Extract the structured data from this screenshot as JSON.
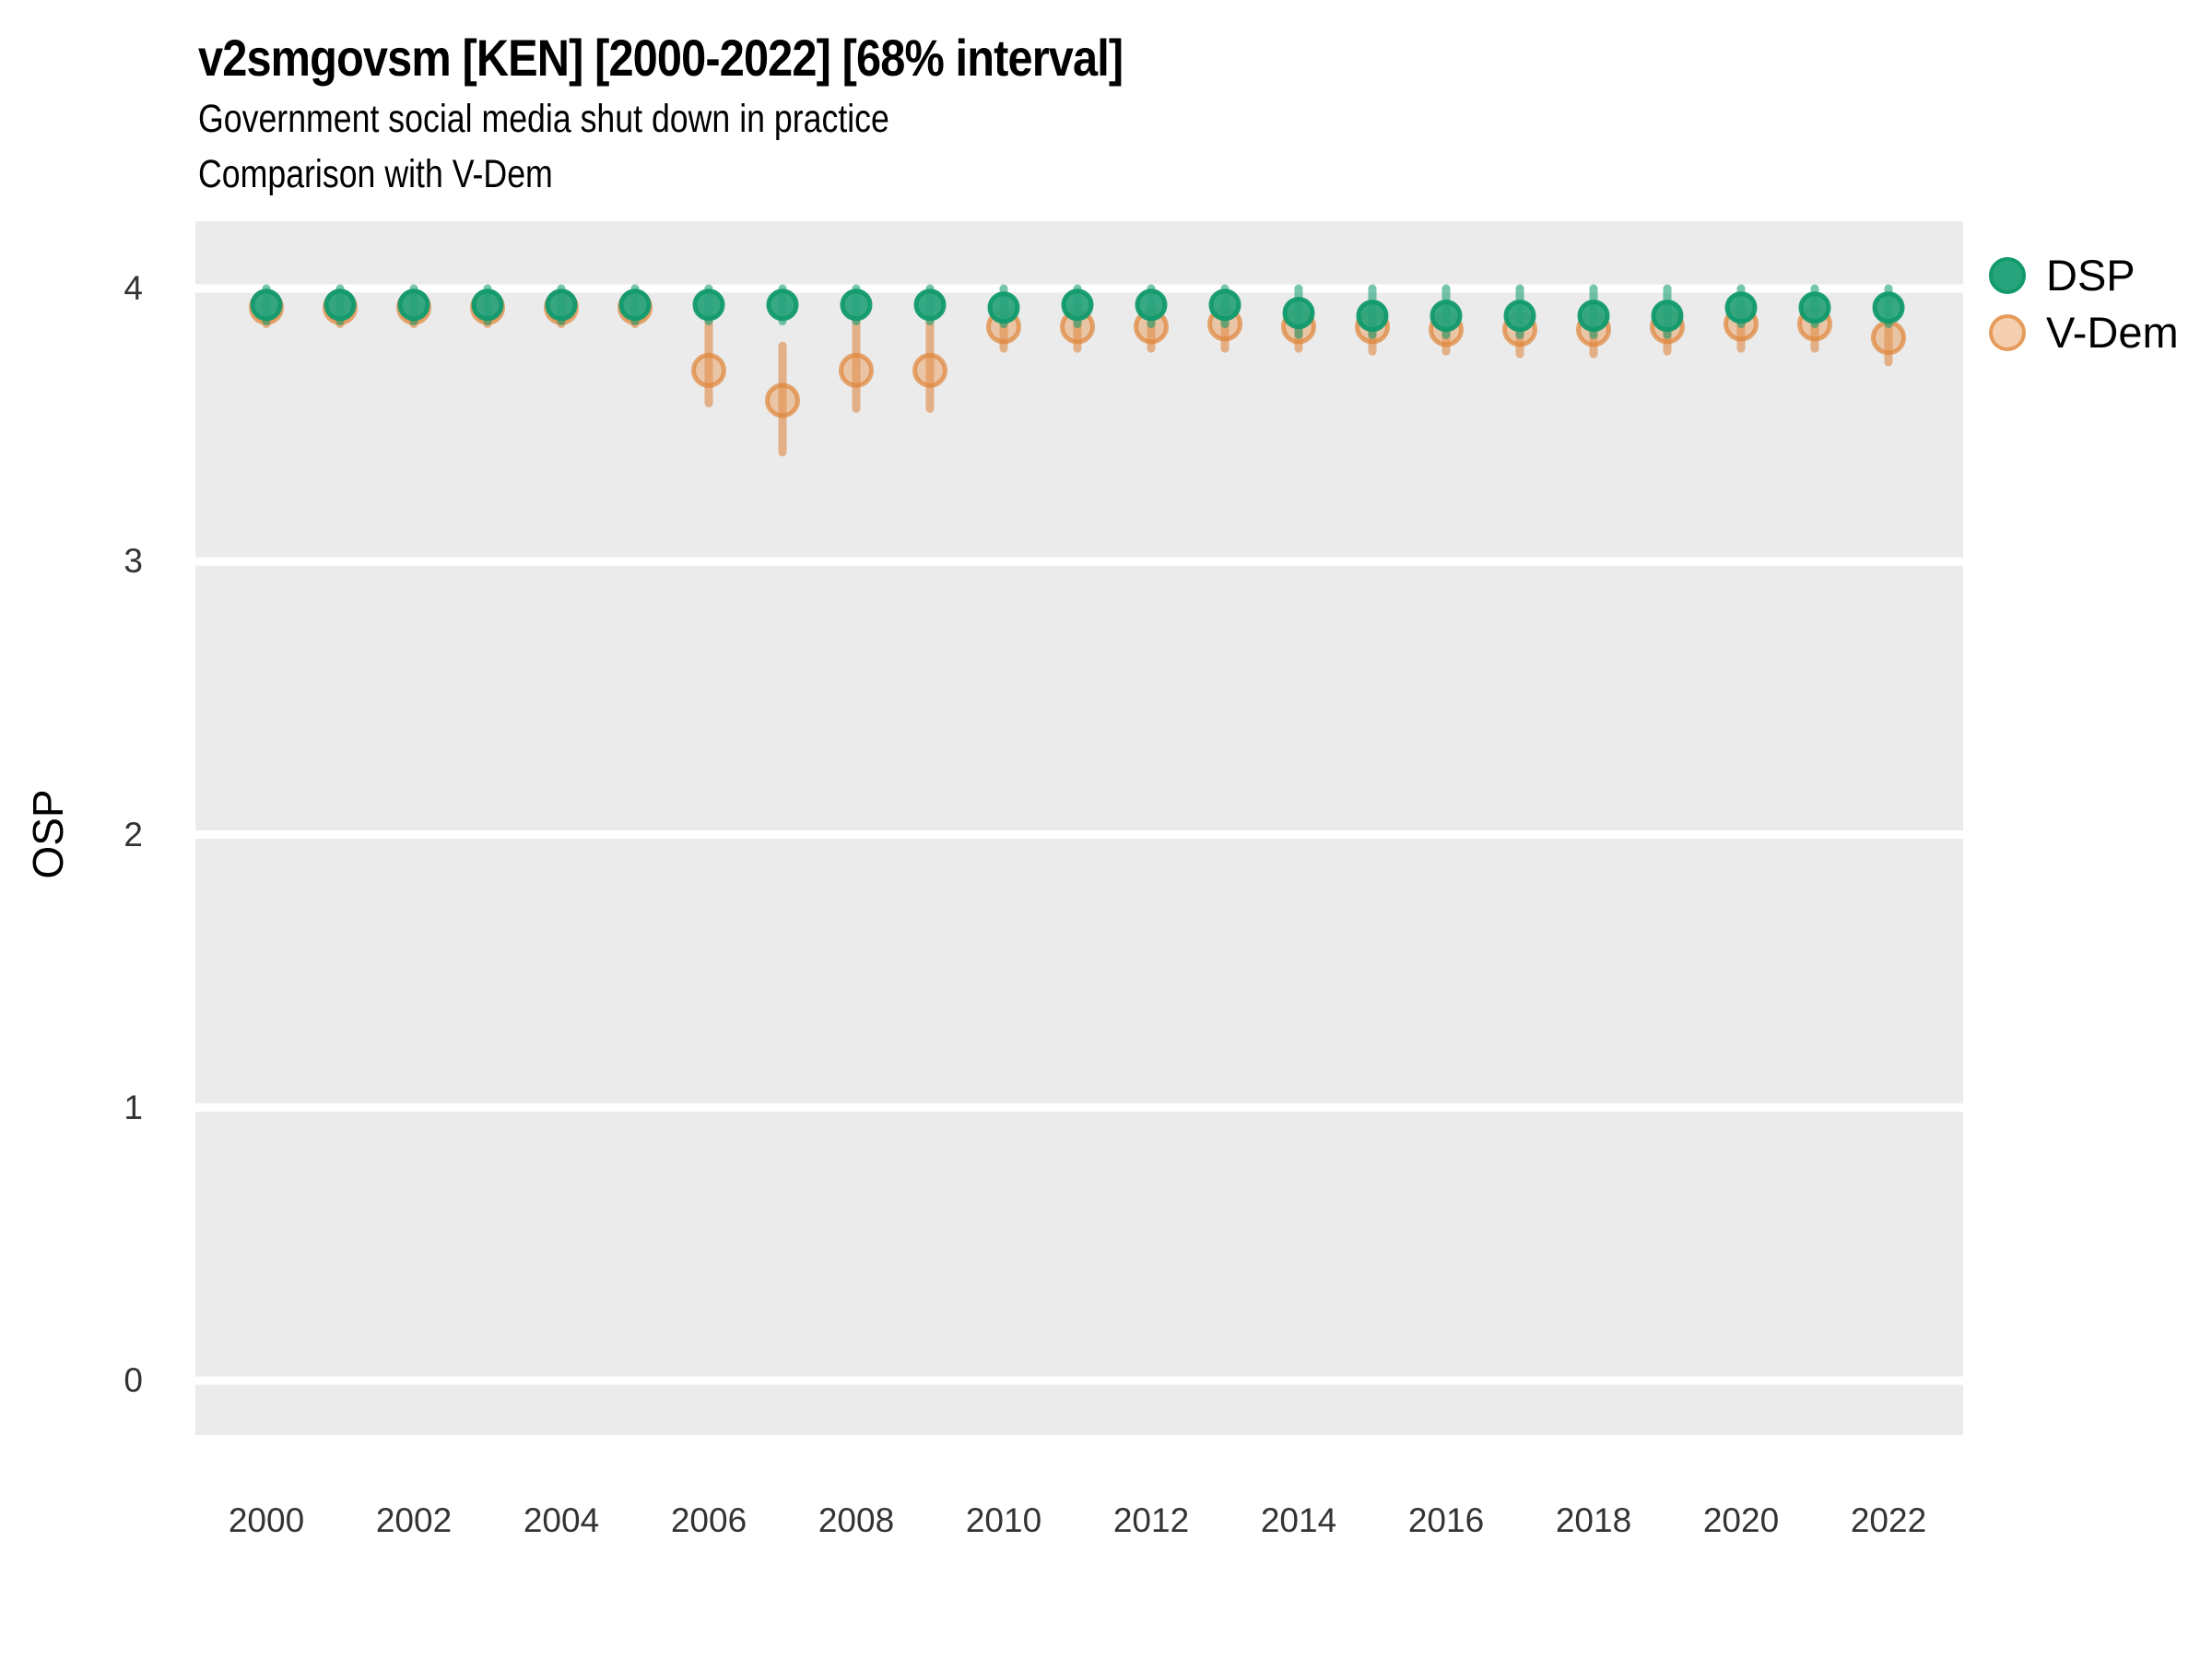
{
  "chart_data": {
    "type": "pointrange",
    "title": "v2smgovsm [KEN] [2000-2022] [68% interval]",
    "subtitle_line1": "Government social media shut down in practice",
    "subtitle_line2": "Comparison with V-Dem",
    "ylabel": "OSP",
    "xlabel": "",
    "x": [
      2000,
      2001,
      2002,
      2003,
      2004,
      2005,
      2006,
      2007,
      2008,
      2009,
      2010,
      2011,
      2012,
      2013,
      2014,
      2015,
      2016,
      2017,
      2018,
      2019,
      2020,
      2021,
      2022
    ],
    "x_tick_labels": [
      "2000",
      "2002",
      "2004",
      "2006",
      "2008",
      "2010",
      "2012",
      "2014",
      "2016",
      "2018",
      "2020",
      "2022"
    ],
    "y_ticks": [
      "4",
      "3",
      "2",
      "1",
      "0"
    ],
    "ylim": [
      -0.2,
      4.25
    ],
    "grid": "horizontal-major-only",
    "legend_position": "right",
    "series": [
      {
        "name": "DSP",
        "point_fill": "#28a47c",
        "point_stroke": "#129a6d",
        "bar_color": "#1b9e77",
        "values": [
          3.94,
          3.94,
          3.94,
          3.94,
          3.94,
          3.94,
          3.94,
          3.94,
          3.94,
          3.94,
          3.93,
          3.94,
          3.94,
          3.94,
          3.91,
          3.9,
          3.9,
          3.9,
          3.9,
          3.9,
          3.93,
          3.93,
          3.93
        ],
        "lo": [
          3.88,
          3.88,
          3.88,
          3.88,
          3.88,
          3.88,
          3.88,
          3.88,
          3.88,
          3.88,
          3.87,
          3.87,
          3.87,
          3.87,
          3.83,
          3.83,
          3.83,
          3.83,
          3.83,
          3.83,
          3.87,
          3.87,
          3.87
        ],
        "hi": [
          4.0,
          4.0,
          4.0,
          4.0,
          4.0,
          4.0,
          4.0,
          4.0,
          4.0,
          4.0,
          4.0,
          4.0,
          4.0,
          4.0,
          4.0,
          4.0,
          4.0,
          4.0,
          4.0,
          4.0,
          4.0,
          4.0,
          4.0
        ]
      },
      {
        "name": "V-Dem",
        "point_fill": "#e79450",
        "point_stroke": "#df8438",
        "bar_color": "#df8b49",
        "values": [
          3.93,
          3.93,
          3.93,
          3.93,
          3.93,
          3.93,
          3.7,
          3.59,
          3.7,
          3.7,
          3.86,
          3.86,
          3.86,
          3.87,
          3.86,
          3.86,
          3.85,
          3.85,
          3.85,
          3.86,
          3.87,
          3.87,
          3.82
        ],
        "lo": [
          3.87,
          3.87,
          3.87,
          3.87,
          3.87,
          3.87,
          3.58,
          3.4,
          3.56,
          3.56,
          3.78,
          3.78,
          3.78,
          3.78,
          3.78,
          3.77,
          3.77,
          3.76,
          3.76,
          3.77,
          3.78,
          3.78,
          3.73
        ],
        "hi": [
          3.98,
          3.98,
          3.98,
          3.98,
          3.98,
          3.98,
          3.89,
          3.79,
          3.89,
          3.89,
          3.93,
          3.93,
          3.93,
          3.94,
          3.93,
          3.93,
          3.93,
          3.92,
          3.92,
          3.93,
          3.94,
          3.94,
          3.9
        ]
      }
    ],
    "legend": [
      {
        "label": "DSP"
      },
      {
        "label": "V-Dem"
      }
    ]
  },
  "colors": {
    "panel_background": "#ebebeb",
    "gridline": "#ffffff",
    "axis_text": "#333333",
    "text": "#000000"
  }
}
